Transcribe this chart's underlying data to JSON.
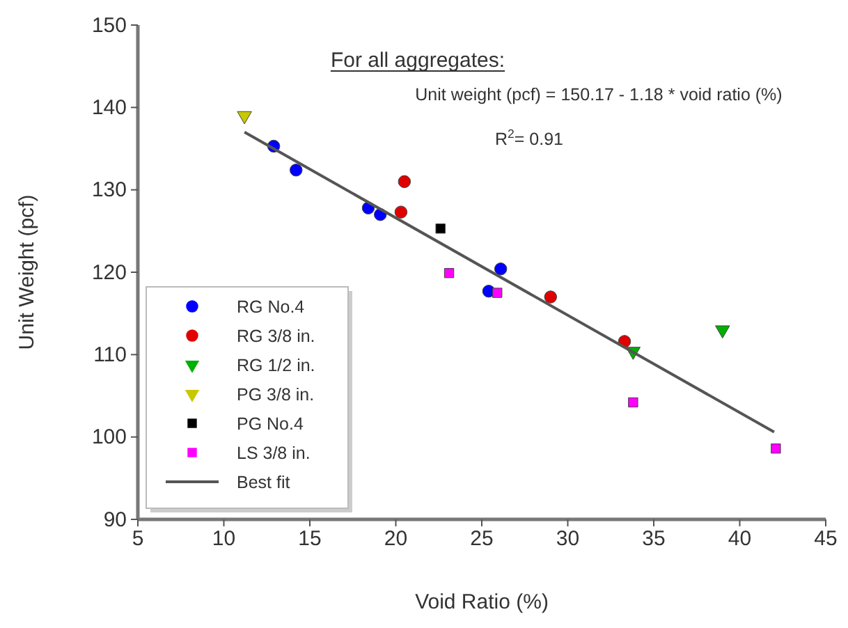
{
  "chart_data": {
    "type": "scatter",
    "xlabel": "Void Ratio (%)",
    "ylabel": "Unit Weight (pcf)",
    "annotations": [
      "For all aggregates:",
      "Unit weight (pcf) = 150.17 - 1.18 * void ratio (%)",
      "R$^{2}$= 0.91"
    ],
    "xlim": [
      5,
      45
    ],
    "xticks": [
      5,
      10,
      15,
      20,
      25,
      30,
      35,
      40,
      45
    ],
    "ylim": [
      90,
      150
    ],
    "yticks": [
      90,
      100,
      110,
      120,
      130,
      140,
      150
    ],
    "grid": false,
    "legend": "bottom left",
    "series": [
      {
        "name": "RG No.4",
        "color": "#0000ff",
        "marker": "circle",
        "x": [
          12.9,
          14.2,
          18.4,
          19.1,
          26.1,
          25.4
        ],
        "values": [
          135.3,
          132.4,
          127.8,
          127.0,
          120.4,
          117.7
        ]
      },
      {
        "name": "RG 3/8 in.",
        "color": "#e00000",
        "marker": "circle",
        "x": [
          20.5,
          20.3,
          29.0,
          33.3
        ],
        "values": [
          131.0,
          127.3,
          117.0,
          111.6
        ]
      },
      {
        "name": "RG 1/2 in.",
        "color": "#00b000",
        "marker": "triangle",
        "x": [
          33.8,
          39.0
        ],
        "values": [
          110.4,
          113.0
        ]
      },
      {
        "name": "PG 3/8 in.",
        "color": "#c8c800",
        "marker": "triangle",
        "x": [
          11.2
        ],
        "values": [
          139.0
        ]
      },
      {
        "name": "PG No.4",
        "color": "#000000",
        "marker": "square",
        "x": [
          22.6
        ],
        "values": [
          125.3
        ]
      },
      {
        "name": "LS 3/8 in.",
        "color": "#ff00ff",
        "marker": "square",
        "x": [
          23.1,
          25.9,
          33.8,
          42.1
        ],
        "values": [
          119.9,
          117.5,
          104.2,
          98.6
        ]
      },
      {
        "name": "Best fit",
        "type": "line",
        "color": "#555555",
        "marker": "none",
        "line_style": "solid",
        "x": [
          11.2,
          42.0
        ],
        "values": [
          137.0,
          100.6
        ]
      }
    ]
  }
}
